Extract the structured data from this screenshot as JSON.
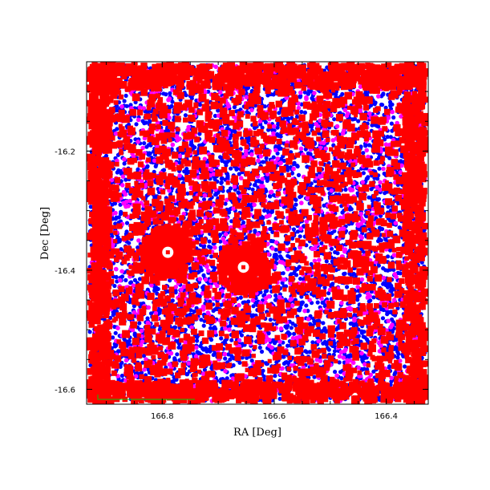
{
  "chart_data": {
    "type": "scatter",
    "title": "",
    "xlabel": "RA [Deg]",
    "ylabel": "Dec [Deg]",
    "xlim": [
      166.935,
      166.325
    ],
    "ylim": [
      -16.625,
      -16.05
    ],
    "x_ticks": [
      166.8,
      166.6,
      166.4
    ],
    "x_tick_labels": [
      "166.8",
      "166.6",
      "166.4"
    ],
    "y_ticks": [
      -16.2,
      -16.4,
      -16.6
    ],
    "y_tick_labels": [
      "-16.2",
      "-16.4",
      "-16.6"
    ],
    "grid": false,
    "legend": "none",
    "series": [
      {
        "color": "#0000ff",
        "marker": "dot",
        "density": "dense, fills field"
      },
      {
        "color": "#ff00ff",
        "marker": "dot",
        "density": "moderate, fills field"
      },
      {
        "color": "#ff0000",
        "marker": "square",
        "density": "dense, concentrated along edges"
      }
    ],
    "bright_sources": [
      {
        "x": 166.79,
        "y": -16.37
      },
      {
        "x": 166.655,
        "y": -16.395
      }
    ],
    "frame_color": "#000000",
    "outline_color": "#00cc00"
  }
}
